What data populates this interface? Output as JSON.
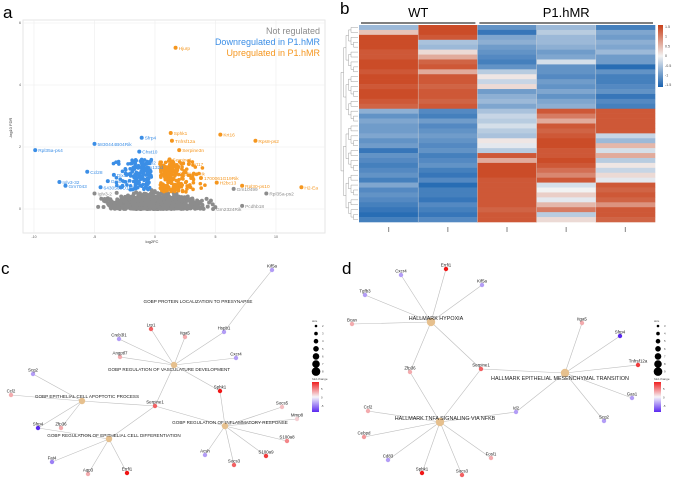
{
  "chart_data": [
    {
      "panel": "a",
      "type": "scatter",
      "subtype": "volcano",
      "xlabel": "log2FC",
      "ylabel": "-log10 FDR",
      "xticks": [
        -10,
        -5,
        0,
        5,
        10
      ],
      "yticks": [
        0,
        2,
        4,
        6
      ],
      "xlim": [
        -11,
        14
      ],
      "ylim": [
        -1.5,
        6
      ],
      "grid": true,
      "legend": {
        "position": "top-right",
        "entries": [
          {
            "label": "Not regulated",
            "color": "#8c8c8c"
          },
          {
            "label": "Downregulated in P1.hMR",
            "color": "#3b8ee6"
          },
          {
            "label": "Upregulated in P1.hMR",
            "color": "#f5961e"
          }
        ]
      },
      "labeled_points": [
        {
          "gene": "Hjurp",
          "x": 1.7,
          "y": 5.2,
          "group": "up"
        },
        {
          "gene": "Krt16",
          "x": 5.4,
          "y": 2.4,
          "group": "up"
        },
        {
          "gene": "Rps8-ps2",
          "x": 8.3,
          "y": 2.2,
          "group": "up"
        },
        {
          "gene": "H2-Ea",
          "x": 12.1,
          "y": 0.7,
          "group": "up"
        },
        {
          "gene": "Rpl30-ps10",
          "x": 7.2,
          "y": 0.75,
          "group": "up"
        },
        {
          "gene": "H2bc13",
          "x": 5.1,
          "y": 0.85,
          "group": "up"
        },
        {
          "gene": "Tnfrsf12a",
          "x": 1.4,
          "y": 2.2,
          "group": "up"
        },
        {
          "gene": "Serpine3n",
          "x": 2.0,
          "y": 1.9,
          "group": "up"
        },
        {
          "gene": "Sphk1",
          "x": 1.3,
          "y": 2.45,
          "group": "up"
        },
        {
          "gene": "Serpine1",
          "x": 1.2,
          "y": 1.6,
          "group": "up"
        },
        {
          "gene": "Krt17",
          "x": 2.8,
          "y": 1.45,
          "group": "up"
        },
        {
          "gene": "4930018L02Rik",
          "x": 1.1,
          "y": 1.15,
          "group": "up"
        },
        {
          "gene": "1700061G19Rik",
          "x": 3.8,
          "y": 1.0,
          "group": "up"
        },
        {
          "gene": "Sfrp4",
          "x": -1.1,
          "y": 2.3,
          "group": "down"
        },
        {
          "gene": "5830444B04Rik",
          "x": -5.0,
          "y": 2.1,
          "group": "down"
        },
        {
          "gene": "Rpl35a-ps4",
          "x": -9.9,
          "y": 1.9,
          "group": "down"
        },
        {
          "gene": "Chst10",
          "x": -1.3,
          "y": 1.85,
          "group": "down"
        },
        {
          "gene": "Dio2",
          "x": -1.0,
          "y": 1.5,
          "group": "down"
        },
        {
          "gene": "Tmem132d",
          "x": -1.6,
          "y": 1.35,
          "group": "down"
        },
        {
          "gene": "Ccl28",
          "x": -5.6,
          "y": 1.2,
          "group": "down"
        },
        {
          "gene": "Dlx5",
          "x": -3.4,
          "y": 1.1,
          "group": "down"
        },
        {
          "gene": "Gm50247",
          "x": -3.9,
          "y": 0.9,
          "group": "down"
        },
        {
          "gene": "Iglv3-32",
          "x": -7.9,
          "y": 0.87,
          "group": "down"
        },
        {
          "gene": "Gm7043",
          "x": -7.4,
          "y": 0.75,
          "group": "down"
        },
        {
          "gene": "6430562O15Rik",
          "x": -4.5,
          "y": 0.7,
          "group": "down"
        },
        {
          "gene": "Rpl35a-ps2",
          "x": 9.2,
          "y": 0.5,
          "group": "ns"
        },
        {
          "gene": "Iglv3-2",
          "x": -5.0,
          "y": 0.5,
          "group": "ns"
        },
        {
          "gene": "Fes",
          "x": -3.3,
          "y": 0.2,
          "group": "ns"
        },
        {
          "gene": "Gm10499",
          "x": 6.5,
          "y": 0.65,
          "group": "ns"
        },
        {
          "gene": "Pcdhb18",
          "x": 7.2,
          "y": 0.1,
          "group": "ns"
        },
        {
          "gene": "Gm2324Rik",
          "x": 4.8,
          "y": 0.0,
          "group": "ns"
        }
      ]
    },
    {
      "panel": "b",
      "type": "heatmap",
      "groups": [
        {
          "label": "WT",
          "columns": 2
        },
        {
          "label": "P1.hMR",
          "columns": 3
        }
      ],
      "colorbar": {
        "ticks": [
          "1.5",
          "1",
          "0.5",
          "0",
          "-0.5",
          "-1",
          "-1.5"
        ],
        "range": [
          -1.5,
          1.5
        ],
        "low": "#1a63b0",
        "mid": "#f2f2f2",
        "high": "#c8401a"
      },
      "matrix": [
        [
          -0.6,
          1.4,
          -1.0,
          -0.6,
          -1.2
        ],
        [
          0.4,
          1.4,
          -1.3,
          -0.4,
          -0.8
        ],
        [
          1.4,
          1.3,
          -0.8,
          -0.6,
          -0.9
        ],
        [
          1.4,
          -0.5,
          -0.7,
          -0.6,
          -0.7
        ],
        [
          1.4,
          -0.6,
          -0.9,
          -0.7,
          -0.8
        ],
        [
          1.3,
          0.2,
          -1.0,
          -0.9,
          -0.6
        ],
        [
          1.3,
          0.6,
          -1.1,
          -0.8,
          -0.9
        ],
        [
          1.4,
          1.2,
          -1.2,
          -0.2,
          -0.9
        ],
        [
          1.4,
          1.3,
          -1.0,
          -1.0,
          -1.4
        ],
        [
          1.3,
          0.6,
          -0.4,
          -1.0,
          -1.0
        ],
        [
          1.4,
          1.3,
          0.1,
          -1.1,
          -1.2
        ],
        [
          1.4,
          1.3,
          -0.3,
          -0.9,
          -1.2
        ],
        [
          1.3,
          1.2,
          0.2,
          -1.0,
          -1.1
        ],
        [
          1.4,
          1.3,
          -0.9,
          -0.8,
          -1.0
        ],
        [
          1.4,
          1.3,
          -0.7,
          -1.0,
          -1.3
        ],
        [
          1.3,
          1.2,
          -0.6,
          -0.8,
          -1.1
        ],
        [
          1.2,
          1.3,
          -0.8,
          -0.7,
          -1.2
        ],
        [
          -0.7,
          -1.1,
          -0.5,
          1.3,
          1.3
        ],
        [
          -1.0,
          -1.2,
          -0.3,
          1.0,
          1.3
        ],
        [
          -0.8,
          -0.9,
          -0.4,
          0.6,
          1.3
        ],
        [
          -0.9,
          -1.1,
          -0.2,
          1.3,
          1.3
        ],
        [
          -0.9,
          -1.0,
          -0.4,
          1.2,
          1.3
        ],
        [
          -0.8,
          -0.9,
          -0.5,
          1.3,
          -0.3
        ],
        [
          -1.0,
          -1.0,
          0.1,
          1.4,
          -0.6
        ],
        [
          -0.9,
          -1.1,
          -0.1,
          1.4,
          0.5
        ],
        [
          -1.3,
          -1.0,
          -0.4,
          1.3,
          -0.2
        ],
        [
          -1.0,
          -1.2,
          1.3,
          1.3,
          0.6
        ],
        [
          -1.1,
          -1.1,
          0.6,
          1.4,
          -0.4
        ],
        [
          -1.2,
          -1.0,
          1.4,
          1.3,
          0.1
        ],
        [
          -1.1,
          -1.2,
          1.4,
          1.1,
          -0.3
        ],
        [
          -1.0,
          -1.3,
          1.4,
          0.9,
          0.2
        ],
        [
          -1.2,
          -1.1,
          1.3,
          1.3,
          -0.1
        ],
        [
          -0.8,
          -1.4,
          1.3,
          -0.2,
          1.3
        ],
        [
          -1.1,
          -1.2,
          1.3,
          0.0,
          1.2
        ],
        [
          -1.0,
          -1.2,
          1.3,
          0.3,
          1.3
        ],
        [
          -1.1,
          -1.3,
          1.3,
          -0.1,
          1.2
        ],
        [
          -1.2,
          -1.1,
          1.3,
          0.5,
          0.8
        ],
        [
          -1.3,
          -1.2,
          1.2,
          1.0,
          1.3
        ],
        [
          -1.4,
          -1.3,
          1.3,
          -0.4,
          1.3
        ],
        [
          -1.2,
          -1.1,
          1.3,
          0.2,
          1.2
        ]
      ]
    },
    {
      "panel": "c",
      "type": "network",
      "terms": [
        "GOBP PROTEIN LOCALIZATION TO PRESYNAPSE",
        "GOBP REGULATION OF VASCULATURE DEVELOPMENT",
        "GOBP EPITHELIAL CELL APOPTOTIC PROCESS",
        "GOBP REGULATION OF INFLAMMATORY RESPONSE",
        "GOBP REGULATION OF EPITHELIAL CELL DIFFERENTIATION"
      ],
      "genes": [
        {
          "name": "Kif5a",
          "fc": -3
        },
        {
          "name": "Hspb1",
          "fc": -3
        },
        {
          "name": "Lrp1",
          "fc": 4
        },
        {
          "name": "Itga5",
          "fc": 2
        },
        {
          "name": "Creb3l1",
          "fc": -3
        },
        {
          "name": "Angptl7",
          "fc": 2
        },
        {
          "name": "Cxcr4",
          "fc": -3
        },
        {
          "name": "Sphk1",
          "fc": 6
        },
        {
          "name": "Scg2",
          "fc": -3
        },
        {
          "name": "Ccl2",
          "fc": 2
        },
        {
          "name": "Serpine1",
          "fc": 4
        },
        {
          "name": "Socs5",
          "fc": 1.5
        },
        {
          "name": "Mmp8",
          "fc": 1
        },
        {
          "name": "S100a8",
          "fc": 3
        },
        {
          "name": "S100a9",
          "fc": 5
        },
        {
          "name": "Acsh",
          "fc": -3
        },
        {
          "name": "Socs3",
          "fc": 4
        },
        {
          "name": "Sfrp4",
          "fc": -7
        },
        {
          "name": "Zfp36",
          "fc": 2
        },
        {
          "name": "Fat4",
          "fc": -4
        },
        {
          "name": "Aqp3",
          "fc": 2
        },
        {
          "name": "Errfi1",
          "fc": 7
        }
      ],
      "edges": [
        [
          "GOBP PROTEIN LOCALIZATION TO PRESYNAPSE",
          "Kif5a"
        ],
        [
          "GOBP PROTEIN LOCALIZATION TO PRESYNAPSE",
          "Hspb1"
        ],
        [
          "GOBP REGULATION OF VASCULATURE DEVELOPMENT",
          "Lrp1"
        ],
        [
          "GOBP REGULATION OF VASCULATURE DEVELOPMENT",
          "Itga5"
        ],
        [
          "GOBP REGULATION OF VASCULATURE DEVELOPMENT",
          "Creb3l1"
        ],
        [
          "GOBP REGULATION OF VASCULATURE DEVELOPMENT",
          "Angptl7"
        ],
        [
          "GOBP REGULATION OF VASCULATURE DEVELOPMENT",
          "Cxcr4"
        ],
        [
          "GOBP REGULATION OF VASCULATURE DEVELOPMENT",
          "Hspb1"
        ],
        [
          "GOBP REGULATION OF VASCULATURE DEVELOPMENT",
          "Sphk1"
        ],
        [
          "GOBP REGULATION OF VASCULATURE DEVELOPMENT",
          "Serpine1"
        ],
        [
          "GOBP EPITHELIAL CELL APOPTOTIC PROCESS",
          "Scg2"
        ],
        [
          "GOBP EPITHELIAL CELL APOPTOTIC PROCESS",
          "Ccl2"
        ],
        [
          "GOBP EPITHELIAL CELL APOPTOTIC PROCESS",
          "Serpine1"
        ],
        [
          "GOBP EPITHELIAL CELL APOPTOTIC PROCESS",
          "Sfrp4"
        ],
        [
          "GOBP EPITHELIAL CELL APOPTOTIC PROCESS",
          "Zfp36"
        ],
        [
          "GOBP REGULATION OF INFLAMMATORY RESPONSE",
          "Sphk1"
        ],
        [
          "GOBP REGULATION OF INFLAMMATORY RESPONSE",
          "Serpine1"
        ],
        [
          "GOBP REGULATION OF INFLAMMATORY RESPONSE",
          "Socs5"
        ],
        [
          "GOBP REGULATION OF INFLAMMATORY RESPONSE",
          "Mmp8"
        ],
        [
          "GOBP REGULATION OF INFLAMMATORY RESPONSE",
          "S100a8"
        ],
        [
          "GOBP REGULATION OF INFLAMMATORY RESPONSE",
          "S100a9"
        ],
        [
          "GOBP REGULATION OF INFLAMMATORY RESPONSE",
          "Acsh"
        ],
        [
          "GOBP REGULATION OF INFLAMMATORY RESPONSE",
          "Socs3"
        ],
        [
          "GOBP REGULATION OF EPITHELIAL CELL DIFFERENTIATION",
          "Serpine1"
        ],
        [
          "GOBP REGULATION OF EPITHELIAL CELL DIFFERENTIATION",
          "Sfrp4"
        ],
        [
          "GOBP REGULATION OF EPITHELIAL CELL DIFFERENTIATION",
          "Fat4"
        ],
        [
          "GOBP REGULATION OF EPITHELIAL CELL DIFFERENTIATION",
          "Aqp3"
        ],
        [
          "GOBP REGULATION OF EPITHELIAL CELL DIFFERENTIATION",
          "Errfi1"
        ]
      ],
      "size_legend": {
        "title": "size",
        "values": [
          "2",
          "3",
          "4",
          "5",
          "6",
          "7",
          "8"
        ]
      },
      "color_legend": {
        "title": "fold change",
        "ticks": [
          "5",
          "0",
          "-5"
        ]
      }
    },
    {
      "panel": "d",
      "type": "network",
      "terms": [
        "HALLMARK HYPOXIA",
        "HALLMARK EPITHELIAL MESENCHYMAL TRANSITION",
        "HALLMARK TNFA SIGNALING VIA NFKB"
      ],
      "genes": [
        {
          "name": "Errfi1",
          "fc": 7
        },
        {
          "name": "Cxcr4",
          "fc": -3
        },
        {
          "name": "Tgfb3",
          "fc": -3
        },
        {
          "name": "Kif5a",
          "fc": -3
        },
        {
          "name": "Bcan",
          "fc": 2
        },
        {
          "name": "Itga5",
          "fc": 2
        },
        {
          "name": "Sfrp4",
          "fc": -7
        },
        {
          "name": "Tnfrsf12a",
          "fc": 5
        },
        {
          "name": "Gas1",
          "fc": -3
        },
        {
          "name": "Scg2",
          "fc": -3
        },
        {
          "name": "Serpine1",
          "fc": 4
        },
        {
          "name": "Zfp36",
          "fc": 2
        },
        {
          "name": "Id2",
          "fc": -3
        },
        {
          "name": "Ccl2",
          "fc": 2
        },
        {
          "name": "Cebpd",
          "fc": 2.5
        },
        {
          "name": "Cd83",
          "fc": -3
        },
        {
          "name": "Sphk1",
          "fc": 6
        },
        {
          "name": "Socs3",
          "fc": 4
        },
        {
          "name": "Fosl1",
          "fc": 2
        }
      ],
      "edges": [
        [
          "HALLMARK HYPOXIA",
          "Errfi1"
        ],
        [
          "HALLMARK HYPOXIA",
          "Cxcr4"
        ],
        [
          "HALLMARK HYPOXIA",
          "Tgfb3"
        ],
        [
          "HALLMARK HYPOXIA",
          "Kif5a"
        ],
        [
          "HALLMARK HYPOXIA",
          "Bcan"
        ],
        [
          "HALLMARK HYPOXIA",
          "Zfp36"
        ],
        [
          "HALLMARK HYPOXIA",
          "Serpine1"
        ],
        [
          "HALLMARK EPITHELIAL MESENCHYMAL TRANSITION",
          "Itga5"
        ],
        [
          "HALLMARK EPITHELIAL MESENCHYMAL TRANSITION",
          "Sfrp4"
        ],
        [
          "HALLMARK EPITHELIAL MESENCHYMAL TRANSITION",
          "Tnfrsf12a"
        ],
        [
          "HALLMARK EPITHELIAL MESENCHYMAL TRANSITION",
          "Gas1"
        ],
        [
          "HALLMARK EPITHELIAL MESENCHYMAL TRANSITION",
          "Scg2"
        ],
        [
          "HALLMARK EPITHELIAL MESENCHYMAL TRANSITION",
          "Serpine1"
        ],
        [
          "HALLMARK EPITHELIAL MESENCHYMAL TRANSITION",
          "Id2"
        ],
        [
          "HALLMARK TNFA SIGNALING VIA NFKB",
          "Zfp36"
        ],
        [
          "HALLMARK TNFA SIGNALING VIA NFKB",
          "Serpine1"
        ],
        [
          "HALLMARK TNFA SIGNALING VIA NFKB",
          "Id2"
        ],
        [
          "HALLMARK TNFA SIGNALING VIA NFKB",
          "Ccl2"
        ],
        [
          "HALLMARK TNFA SIGNALING VIA NFKB",
          "Cebpd"
        ],
        [
          "HALLMARK TNFA SIGNALING VIA NFKB",
          "Cd83"
        ],
        [
          "HALLMARK TNFA SIGNALING VIA NFKB",
          "Sphk1"
        ],
        [
          "HALLMARK TNFA SIGNALING VIA NFKB",
          "Socs3"
        ],
        [
          "HALLMARK TNFA SIGNALING VIA NFKB",
          "Fosl1"
        ]
      ],
      "size_legend": {
        "title": "size",
        "values": [
          "3",
          "4",
          "5",
          "6",
          "7",
          "8",
          "9"
        ]
      },
      "color_legend": {
        "title": "fold change",
        "ticks": [
          "5",
          "0",
          "-5"
        ]
      }
    }
  ],
  "panels": {
    "a": "a",
    "b": "b",
    "c": "c",
    "d": "d"
  }
}
